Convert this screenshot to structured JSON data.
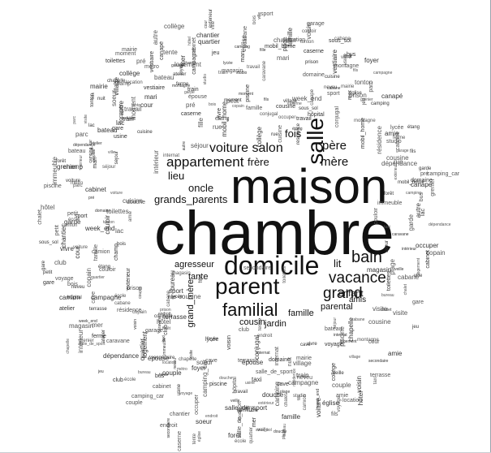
{
  "cloud": {
    "major": [
      {
        "text": "chambre"
      },
      {
        "text": "maison"
      },
      {
        "text": "domicile"
      },
      {
        "text": "parent"
      },
      {
        "text": "familial"
      },
      {
        "text": "vacance"
      },
      {
        "text": "salle"
      },
      {
        "text": "bain"
      },
      {
        "text": "grand"
      },
      {
        "text": "voiture salon"
      },
      {
        "text": "appartement"
      },
      {
        "text": "mère"
      },
      {
        "text": "père"
      },
      {
        "text": "fois"
      },
      {
        "text": "oncle"
      },
      {
        "text": "grands_parents"
      },
      {
        "text": "lieu"
      },
      {
        "text": "frère"
      },
      {
        "text": "agresseur"
      },
      {
        "text": "lit"
      },
      {
        "text": "enfant"
      },
      {
        "text": "famille"
      },
      {
        "text": "parental"
      },
      {
        "text": "cousin"
      },
      {
        "text": "jardin"
      },
      {
        "text": "tante"
      },
      {
        "text": "grand_mère"
      },
      {
        "text": "amis"
      }
    ],
    "minor": [
      "dépendance",
      "cuisine",
      "garage",
      "campagne",
      "cabane",
      "logement",
      "conjugal",
      "soeur",
      "ville",
      "couloir",
      "hôtel",
      "cave",
      "location",
      "voyage",
      "école",
      "travail",
      "famille",
      "bureau",
      "copain",
      "canapé",
      "internat",
      "quartier",
      "piscine",
      "forêt",
      "camping",
      "studio",
      "village",
      "foyer",
      "immeuble",
      "grenier",
      "moment",
      "endroit",
      "week_end",
      "nuit",
      "séjour",
      "vivre",
      "visite",
      "autre",
      "cour",
      "caravane",
      "chalet",
      "terrasse",
      "voisin",
      "mari",
      "couple",
      "ferme",
      "domaine",
      "résidence",
      "bateau",
      "sous_sol",
      "camping_car",
      "collège",
      "lycée",
      "camion",
      "garde",
      "veille",
      "secondaire",
      "intérieur",
      "extérieur",
      "occuper",
      "cabinet",
      "mobil_home",
      "toilettes",
      "douche",
      "épouse",
      "amie",
      "tonton",
      "fille",
      "fils",
      "neveu",
      "cousine",
      "petit",
      "sport",
      "jeu",
      "club",
      "vestiaire",
      "salle_de_sport",
      "plage",
      "église",
      "chapelle",
      "prison",
      "caserne",
      "bois",
      "pré",
      "parc",
      "rue",
      "voiture",
      "métro",
      "train",
      "gare",
      "bus",
      "taxi",
      "champ",
      "étang",
      "lac",
      "mer",
      "montagne",
      "chantier",
      "usine",
      "atelier",
      "magasin",
      "cabane",
      "tente",
      "mairie",
      "hôpital"
    ]
  }
}
